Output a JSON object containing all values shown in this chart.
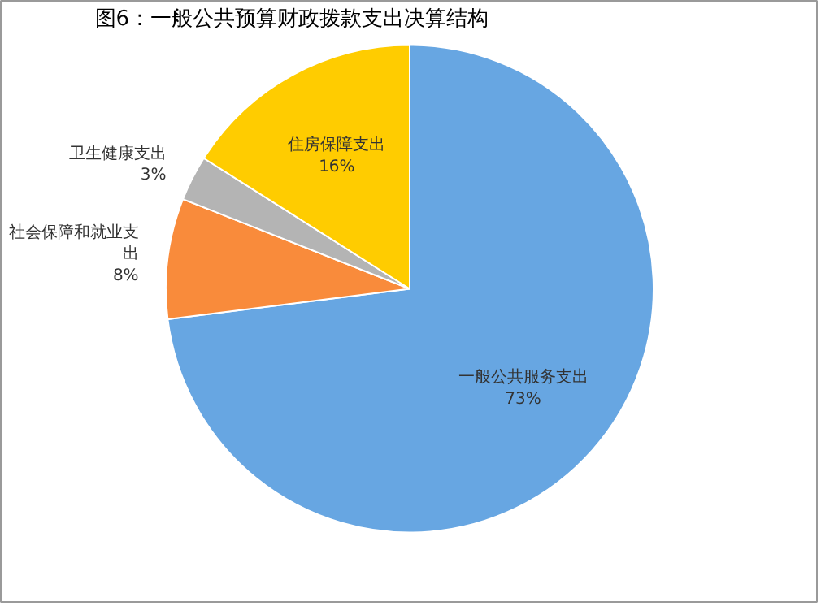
{
  "chart_data": {
    "type": "pie",
    "title": "图6：一般公共预算财政拨款支出决算结构",
    "categories": [
      "一般公共服务支出",
      "社会保障和就业支出",
      "卫生健康支出",
      "住房保障支出"
    ],
    "values": [
      73,
      8,
      3,
      16
    ],
    "value_labels": [
      "73%",
      "8%",
      "3%",
      "16%"
    ],
    "colors": [
      "#67a6e2",
      "#f98b3b",
      "#b4b4b4",
      "#ffcc00"
    ]
  }
}
